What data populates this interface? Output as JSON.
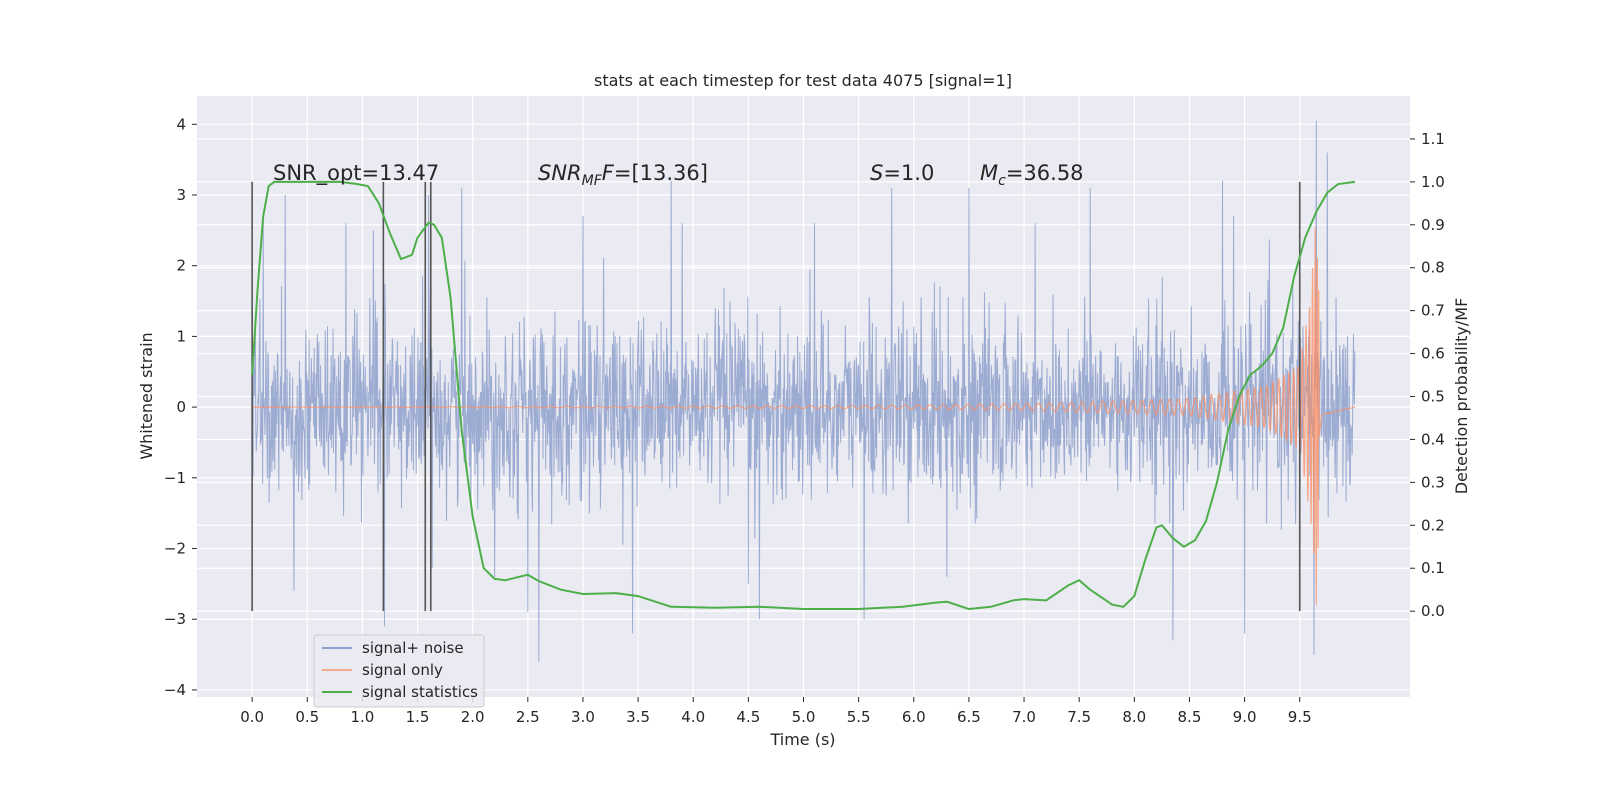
{
  "chart_data": {
    "type": "line",
    "title": "stats at each timestep for test data 4075 [signal=1]",
    "xlabel": "Time (s)",
    "ylabel_left": "Whitened strain",
    "ylabel_right": "Detection probability/MF",
    "xlim": [
      -0.5,
      10.5
    ],
    "ylim_left": [
      -4.1,
      4.4
    ],
    "ylim_right": [
      -0.2,
      1.2
    ],
    "x_ticks": [
      "0.0",
      "0.5",
      "1.0",
      "1.5",
      "2.0",
      "2.5",
      "3.0",
      "3.5",
      "4.0",
      "4.5",
      "5.0",
      "5.5",
      "6.0",
      "6.5",
      "7.0",
      "7.5",
      "8.0",
      "8.5",
      "9.0",
      "9.5"
    ],
    "y_left_ticks": [
      "4",
      "3",
      "2",
      "1",
      "0",
      "−1",
      "−2",
      "−3",
      "−4"
    ],
    "y_right_ticks": [
      "1.1",
      "1.0",
      "0.9",
      "0.8",
      "0.7",
      "0.6",
      "0.5",
      "0.4",
      "0.3",
      "0.2",
      "0.1",
      "0.0"
    ],
    "grid": true,
    "legend_placement": "lower-left",
    "annotations": {
      "snr_opt": "SNR_opt=13.47",
      "snr_mf_base": "SNR",
      "snr_mf_sub": "MF",
      "snr_mf_rest": "=[13.36]",
      "s_label": "S",
      "s_rest": "=1.0",
      "mc_base": "M",
      "mc_sub": "c",
      "mc_rest": "=36.58"
    },
    "vertical_markers_x": [
      0.0,
      1.19,
      1.57,
      1.62,
      9.5
    ],
    "series": [
      {
        "name": "signal+ noise",
        "color": "#8da0cb",
        "x_range": [
          0.0,
          10.0
        ],
        "typical_envelope": 1.4,
        "peaks": [
          {
            "x": 0.1,
            "y": 2.7
          },
          {
            "x": 0.3,
            "y": 3.0
          },
          {
            "x": 0.38,
            "y": -2.6
          },
          {
            "x": 0.85,
            "y": 2.6
          },
          {
            "x": 1.1,
            "y": 2.5
          },
          {
            "x": 1.2,
            "y": -3.1
          },
          {
            "x": 1.6,
            "y": 3.0
          },
          {
            "x": 1.9,
            "y": 3.1
          },
          {
            "x": 2.2,
            "y": -2.4
          },
          {
            "x": 2.5,
            "y": -2.9
          },
          {
            "x": 2.6,
            "y": -3.6
          },
          {
            "x": 3.0,
            "y": 2.7
          },
          {
            "x": 3.45,
            "y": -3.2
          },
          {
            "x": 3.8,
            "y": 3.2
          },
          {
            "x": 3.9,
            "y": 2.6
          },
          {
            "x": 4.5,
            "y": -2.5
          },
          {
            "x": 4.6,
            "y": -3.0
          },
          {
            "x": 5.1,
            "y": 2.6
          },
          {
            "x": 5.55,
            "y": -3.0
          },
          {
            "x": 5.8,
            "y": 3.1
          },
          {
            "x": 6.3,
            "y": -2.4
          },
          {
            "x": 6.5,
            "y": 3.1
          },
          {
            "x": 7.1,
            "y": 2.6
          },
          {
            "x": 7.6,
            "y": 3.1
          },
          {
            "x": 8.35,
            "y": -3.3
          },
          {
            "x": 8.8,
            "y": 3.2
          },
          {
            "x": 8.9,
            "y": 2.7
          },
          {
            "x": 9.0,
            "y": -3.2
          },
          {
            "x": 9.65,
            "y": 4.05
          },
          {
            "x": 9.63,
            "y": -3.5
          },
          {
            "x": 9.75,
            "y": 3.6
          }
        ]
      },
      {
        "name": "signal only",
        "color": "#fc8d62",
        "description_points": [
          {
            "x": 0.0,
            "amp": 0.0
          },
          {
            "x": 5.5,
            "amp": 0.02
          },
          {
            "x": 7.0,
            "amp": 0.05
          },
          {
            "x": 8.5,
            "amp": 0.12
          },
          {
            "x": 9.2,
            "amp": 0.3
          },
          {
            "x": 9.5,
            "amp": 0.6
          },
          {
            "x": 9.6,
            "amp": 1.6
          },
          {
            "x": 9.65,
            "amp": 2.8
          },
          {
            "x": 9.7,
            "amp": 0.4
          },
          {
            "x": 10.0,
            "amp": 0.0
          }
        ]
      },
      {
        "name": "signal statistics",
        "color": "#4daf4a",
        "axis": "right",
        "x": [
          0.0,
          0.05,
          0.1,
          0.15,
          0.2,
          0.3,
          0.5,
          0.8,
          0.95,
          1.05,
          1.15,
          1.25,
          1.35,
          1.45,
          1.5,
          1.6,
          1.65,
          1.72,
          1.8,
          1.9,
          2.0,
          2.1,
          2.2,
          2.3,
          2.5,
          2.6,
          2.8,
          3.0,
          3.3,
          3.5,
          3.8,
          4.2,
          4.6,
          5.0,
          5.5,
          5.9,
          6.2,
          6.3,
          6.5,
          6.7,
          6.9,
          7.0,
          7.2,
          7.4,
          7.5,
          7.6,
          7.8,
          7.9,
          8.0,
          8.1,
          8.2,
          8.25,
          8.35,
          8.45,
          8.55,
          8.65,
          8.75,
          8.85,
          8.95,
          9.05,
          9.15,
          9.25,
          9.35,
          9.45,
          9.55,
          9.65,
          9.75,
          9.85,
          10.0
        ],
        "y": [
          0.55,
          0.75,
          0.92,
          0.99,
          1.0,
          1.0,
          1.0,
          1.0,
          0.995,
          0.99,
          0.95,
          0.88,
          0.82,
          0.83,
          0.87,
          0.905,
          0.9,
          0.87,
          0.73,
          0.42,
          0.22,
          0.1,
          0.075,
          0.072,
          0.085,
          0.07,
          0.05,
          0.04,
          0.042,
          0.035,
          0.01,
          0.008,
          0.01,
          0.005,
          0.005,
          0.01,
          0.02,
          0.022,
          0.005,
          0.01,
          0.025,
          0.028,
          0.025,
          0.06,
          0.072,
          0.05,
          0.015,
          0.01,
          0.035,
          0.12,
          0.195,
          0.2,
          0.17,
          0.15,
          0.165,
          0.21,
          0.3,
          0.42,
          0.5,
          0.55,
          0.57,
          0.6,
          0.66,
          0.78,
          0.87,
          0.93,
          0.975,
          0.995,
          1.0
        ]
      }
    ]
  },
  "legend": {
    "items": [
      {
        "label": "signal+ noise",
        "color": "#8da0cb"
      },
      {
        "label": "signal only",
        "color": "#fc8d62"
      },
      {
        "label": "signal statistics",
        "color": "#4daf4a"
      }
    ]
  }
}
